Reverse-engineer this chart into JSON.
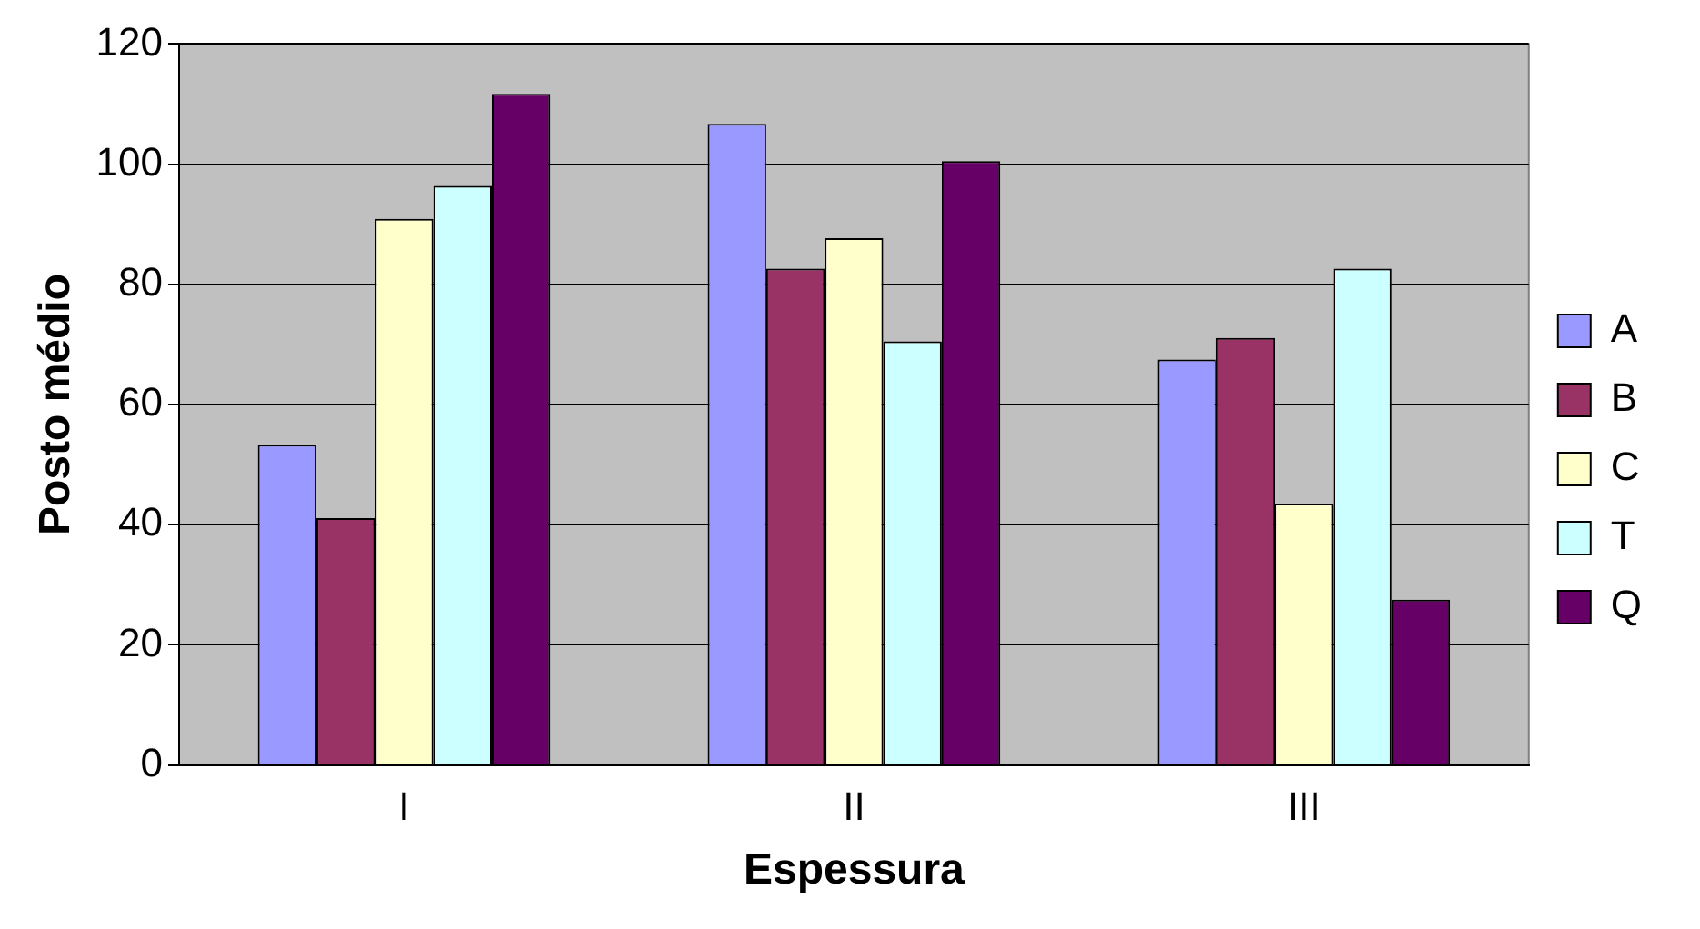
{
  "chart_data": {
    "type": "bar",
    "xlabel": "Espessura",
    "ylabel": "Posto médio",
    "categories": [
      "I",
      "II",
      "III"
    ],
    "series": [
      {
        "name": "A",
        "color": "#9999ff",
        "values": [
          53.3,
          106.7,
          67.5
        ]
      },
      {
        "name": "B",
        "color": "#993366",
        "values": [
          41.1,
          82.6,
          71.1
        ]
      },
      {
        "name": "C",
        "color": "#ffffcc",
        "values": [
          90.9,
          87.7,
          43.5
        ]
      },
      {
        "name": "T",
        "color": "#ccffff",
        "values": [
          96.4,
          70.5,
          82.6
        ]
      },
      {
        "name": "Q",
        "color": "#660066",
        "values": [
          111.7,
          100.5,
          27.5
        ]
      }
    ],
    "ylim": [
      0,
      120
    ],
    "yticks": [
      0,
      20,
      40,
      60,
      80,
      100,
      120
    ],
    "grid": "y",
    "legend": "right"
  }
}
